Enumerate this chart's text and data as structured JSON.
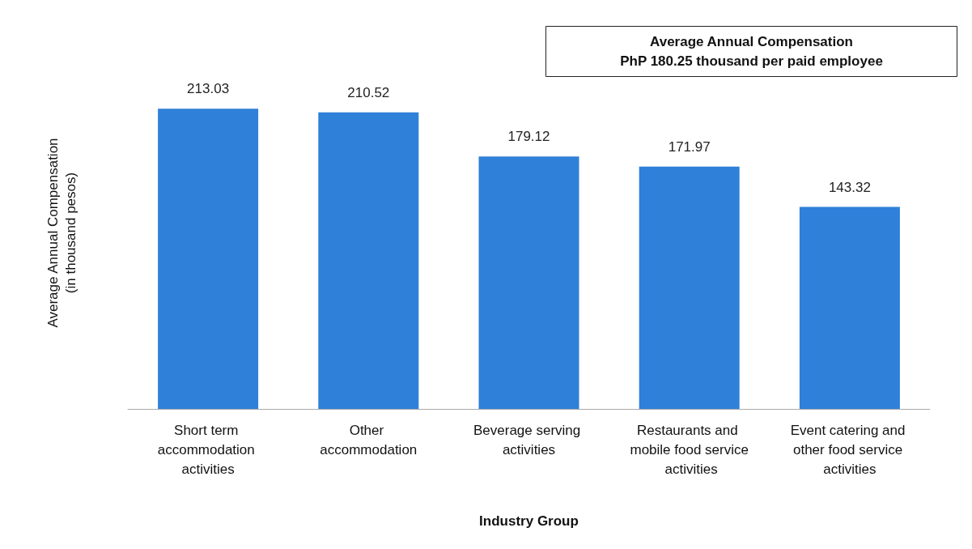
{
  "chart_data": {
    "type": "bar",
    "categories": [
      "Short term accommodation activities",
      "Other accommodation",
      "Beverage serving activities",
      "Restaurants and mobile food service activities",
      "Event catering and other food service activities"
    ],
    "values": [
      213.03,
      210.52,
      179.12,
      171.97,
      143.32
    ],
    "color": "#2f80d8",
    "data_labels": true,
    "tick_labels": "x",
    "grid": false,
    "xlabel": "Industry Group",
    "ylabel": "Average Annual Compensation\n(in thousand pesos)",
    "annotations": [
      "Average Annual Compensation\nPhP 180.25 thousand per paid employee"
    ]
  }
}
